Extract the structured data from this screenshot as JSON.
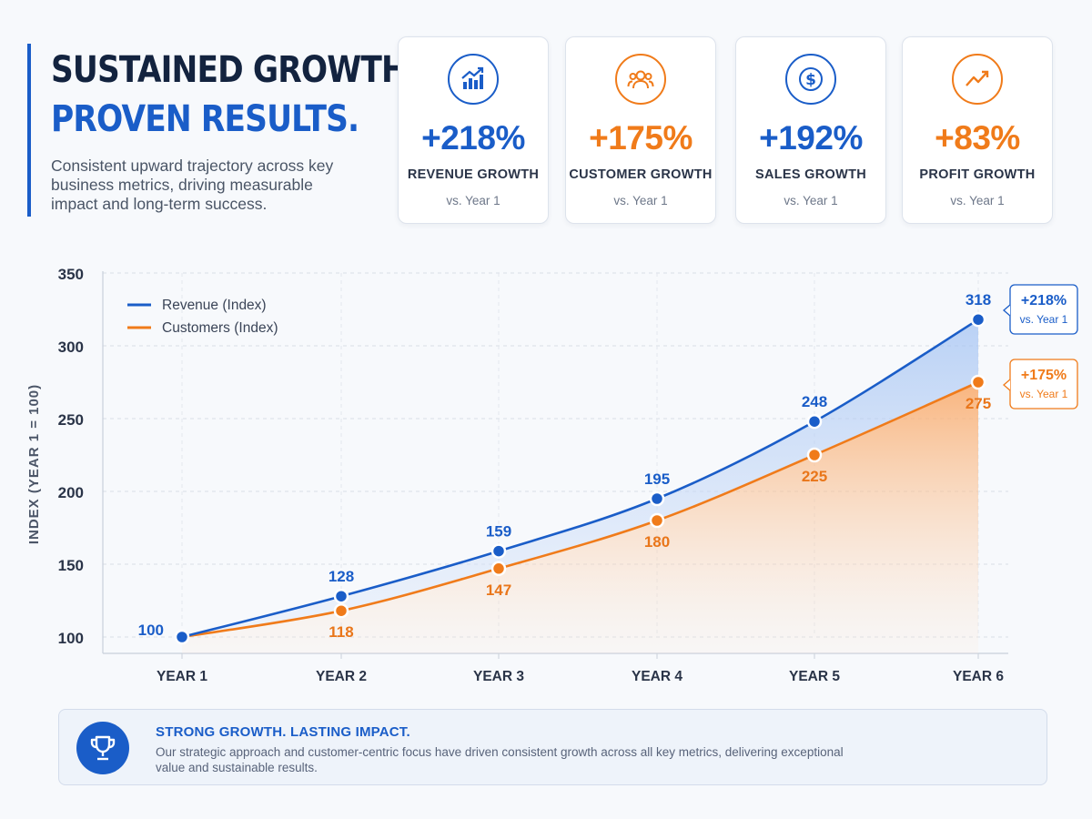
{
  "hero": {
    "title_line1": "SUSTAINED GROWTH.",
    "title_line2": "PROVEN RESULTS.",
    "subtitle": "Consistent upward trajectory across key business metrics, driving measurable impact and long-term success."
  },
  "kpis": [
    {
      "value": "+218%",
      "label": "REVENUE GROWTH",
      "sub": "vs. Year 1",
      "icon": "bar-chart-up-icon",
      "color": "#1a5dc8"
    },
    {
      "value": "+175%",
      "label": "CUSTOMER GROWTH",
      "sub": "vs. Year 1",
      "icon": "users-icon",
      "color": "#f07b1a"
    },
    {
      "value": "+192%",
      "label": "SALES GROWTH",
      "sub": "vs. Year 1",
      "icon": "dollar-icon",
      "color": "#1a5dc8"
    },
    {
      "value": "+83%",
      "label": "PROFIT GROWTH",
      "sub": "vs. Year 1",
      "icon": "trend-up-icon",
      "color": "#f07b1a"
    }
  ],
  "chart_data": {
    "type": "area",
    "categories": [
      "YEAR 1",
      "YEAR 2",
      "YEAR 3",
      "YEAR 4",
      "YEAR 5",
      "YEAR 6"
    ],
    "series": [
      {
        "name": "Revenue (Index)",
        "values": [
          100,
          128,
          159,
          195,
          248,
          318
        ],
        "color": "#1a5dc8"
      },
      {
        "name": "Customers (Index)",
        "values": [
          100,
          118,
          147,
          180,
          225,
          275
        ],
        "color": "#f07b1a"
      }
    ],
    "ylabel": "INDEX (YEAR 1 = 100)",
    "xlabel": "",
    "ylim": [
      100,
      350
    ],
    "yticks": [
      100,
      150,
      200,
      250,
      300,
      350
    ],
    "grid": true,
    "legend": "top-left",
    "end_callouts": [
      {
        "value": "+218%",
        "sub": "vs. Year 1",
        "series": 0
      },
      {
        "value": "+175%",
        "sub": "vs. Year 1",
        "series": 1
      }
    ]
  },
  "callout": {
    "title": "STRONG GROWTH. LASTING IMPACT.",
    "body": "Our strategic approach and customer-centric focus have driven consistent growth across all key metrics, delivering exceptional value and sustainable results.",
    "icon": "trophy-icon"
  }
}
